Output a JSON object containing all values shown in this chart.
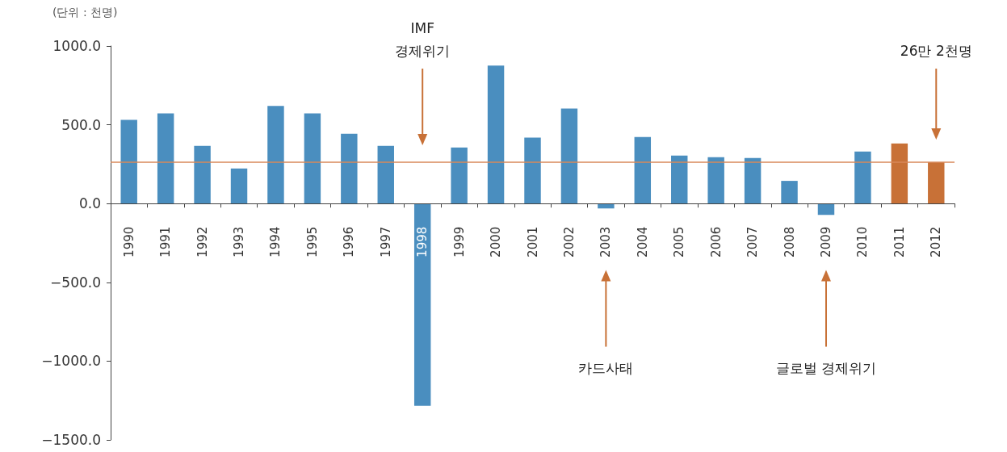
{
  "chart_data": {
    "type": "bar",
    "categories": [
      "1990",
      "1991",
      "1992",
      "1993",
      "1994",
      "1995",
      "1996",
      "1997",
      "1998",
      "1999",
      "2000",
      "2001",
      "2002",
      "2003",
      "2004",
      "2005",
      "2006",
      "2007",
      "2008",
      "2009",
      "2010",
      "2011",
      "2012"
    ],
    "values": [
      531,
      572,
      366,
      222,
      619,
      572,
      443,
      366,
      -1284,
      356,
      876,
      418,
      603,
      -31,
      423,
      304,
      294,
      289,
      144,
      -72,
      330,
      381,
      262
    ],
    "colors": [
      "#4a8ebf",
      "#4a8ebf",
      "#4a8ebf",
      "#4a8ebf",
      "#4a8ebf",
      "#4a8ebf",
      "#4a8ebf",
      "#4a8ebf",
      "#4a8ebf",
      "#4a8ebf",
      "#4a8ebf",
      "#4a8ebf",
      "#4a8ebf",
      "#4a8ebf",
      "#4a8ebf",
      "#4a8ebf",
      "#4a8ebf",
      "#4a8ebf",
      "#4a8ebf",
      "#4a8ebf",
      "#4a8ebf",
      "#c87137",
      "#c87137"
    ],
    "ylim": [
      -1500,
      1000
    ],
    "yticks": [
      {
        "value": -1500,
        "label": "−1500.0"
      },
      {
        "value": -1000,
        "label": "−1000.0"
      },
      {
        "value": -500,
        "label": "−500.0"
      },
      {
        "value": 0,
        "label": "0.0"
      },
      {
        "value": 500,
        "label": "500.0"
      },
      {
        "value": 1000,
        "label": "1000.0"
      }
    ],
    "ref_lines": [
      {
        "axis": "y",
        "value": 265,
        "color": "#d9895a"
      }
    ],
    "annotations": [
      "(단위 : 천명)",
      {
        "text": "IMF\n경제위기",
        "x": "1998"
      },
      {
        "text": "카드사태",
        "x": "2003"
      },
      {
        "text": "글로벌 경제위기",
        "x": "2009"
      },
      {
        "text": "26만 2천명",
        "x": "2012"
      }
    ]
  }
}
